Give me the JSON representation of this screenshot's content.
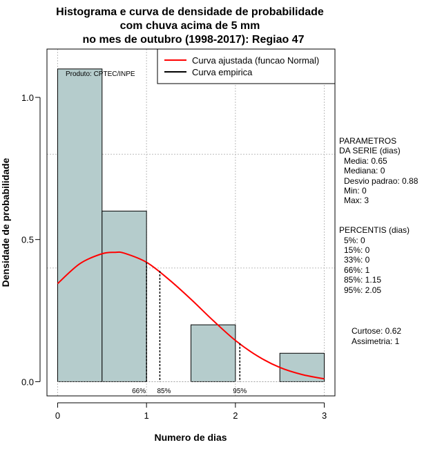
{
  "chart_data": {
    "type": "bar",
    "title_lines": [
      "Histograma e curva de densidade de probabilidade",
      "com chuva acima de 5 mm",
      "no mes de outubro (1998-2017): Regiao 47"
    ],
    "xlabel": "Numero de dias",
    "ylabel": "Densidade de probabilidade",
    "xlim": [
      -0.12,
      3.12
    ],
    "ylim": [
      -0.05,
      1.17
    ],
    "x_ticks": [
      0,
      1,
      2,
      3
    ],
    "x_tick_labels": [
      "0",
      "1",
      "2",
      "3"
    ],
    "y_ticks": [
      0.0,
      0.5,
      1.0
    ],
    "y_tick_labels": [
      "0.0",
      "0.5",
      "1.0"
    ],
    "grid": true,
    "grid_y_values": [
      0.4,
      0.8
    ],
    "bar_color": "#b5cccc",
    "bars": [
      {
        "x0": 0.0,
        "x1": 0.5,
        "value": 1.1
      },
      {
        "x0": 0.5,
        "x1": 1.0,
        "value": 0.6
      },
      {
        "x0": 1.0,
        "x1": 1.5,
        "value": 0.0
      },
      {
        "x0": 1.5,
        "x1": 2.0,
        "value": 0.2
      },
      {
        "x0": 2.0,
        "x1": 2.5,
        "value": 0.0
      },
      {
        "x0": 2.5,
        "x1": 3.0,
        "value": 0.1
      }
    ],
    "curve": {
      "name": "Curva ajustada (funcao Normal)",
      "color": "#ff0000",
      "x": [
        0,
        0.25,
        0.5,
        0.65,
        0.75,
        1.0,
        1.25,
        1.5,
        1.75,
        2.0,
        2.25,
        2.5,
        2.75,
        3.0
      ],
      "y": [
        0.345,
        0.415,
        0.45,
        0.455,
        0.452,
        0.42,
        0.36,
        0.29,
        0.215,
        0.145,
        0.09,
        0.05,
        0.025,
        0.01
      ]
    },
    "empirical": {
      "name": "Curva empirica",
      "color": "#000000"
    },
    "percentile_lines": [
      {
        "x": 1.0,
        "y": 0.42,
        "label": "66%"
      },
      {
        "x": 1.15,
        "y": 0.39,
        "label": "85%"
      },
      {
        "x": 2.05,
        "y": 0.135,
        "label": "95%"
      }
    ],
    "legend_position": "top-right",
    "credit": "Produto: CPTEC/INPE",
    "parametros": {
      "heading": [
        "PARAMETROS",
        "DA SERIE (dias)"
      ],
      "lines": [
        "Media: 0.65",
        "Mediana: 0",
        "Desvio padrao: 0.88",
        "Min: 0",
        "Max: 3"
      ]
    },
    "percentis": {
      "heading": "PERCENTIS (dias)",
      "lines": [
        "5%: 0",
        "15%: 0",
        "33%: 0",
        "66%: 1",
        "85%: 1.15",
        "95%: 2.05"
      ]
    },
    "shape": {
      "lines": [
        "Curtose: 0.62",
        "Assimetria: 1"
      ]
    }
  }
}
